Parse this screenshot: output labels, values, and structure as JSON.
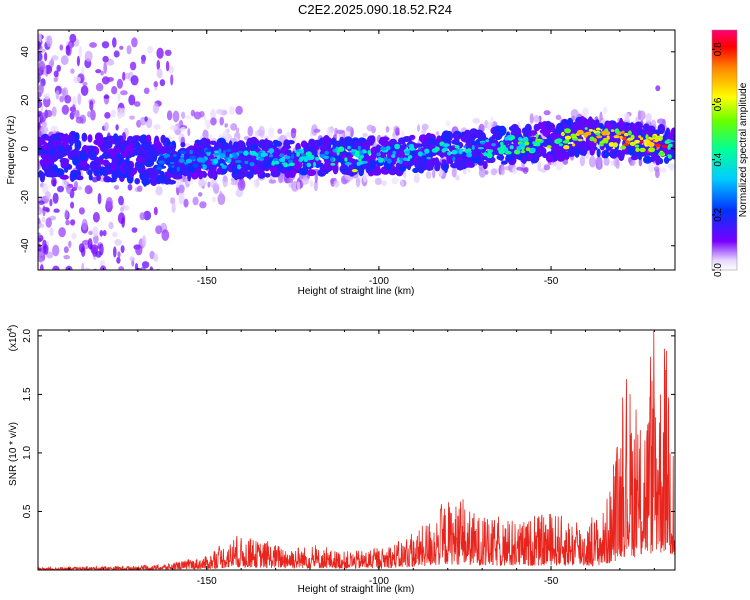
{
  "title": "C2E2.2025.090.18.52.R24",
  "colors": {
    "background": "#ffffff",
    "snr_line": "#e8241c",
    "spec_low": "#6600ff",
    "spec_mid": "#00e5ff",
    "spec_high": "#ff0000"
  },
  "colorbar": {
    "label": "Normalized spectral amplitude",
    "ticks": [
      "0.0",
      "0.2",
      "0.4",
      "0.6",
      "0.8"
    ],
    "range": [
      0,
      0.87
    ],
    "colormap": "rainbow-on-white"
  },
  "chart_data": [
    {
      "type": "heatmap",
      "title": "",
      "xlabel": "Height of straight line (km)",
      "ylabel": "Frequency (Hz)",
      "xlim": [
        -199,
        -14
      ],
      "ylim": [
        -50,
        49
      ],
      "xticks": [
        "-150",
        "-100",
        "-50"
      ],
      "yticks": [
        "40",
        "20",
        "0",
        "-20",
        "-40"
      ],
      "ridge": {
        "x": [
          -195,
          -180,
          -160,
          -150,
          -130,
          -110,
          -100,
          -90,
          -70,
          -60,
          -50,
          -40,
          -30,
          -20,
          -15
        ],
        "freq": [
          -3,
          -4,
          -5,
          -4,
          -4,
          -3,
          -3,
          -2,
          0,
          2,
          3,
          5,
          4,
          2,
          0
        ],
        "amplitude": [
          0.15,
          0.2,
          0.3,
          0.35,
          0.4,
          0.45,
          0.45,
          0.4,
          0.45,
          0.5,
          0.6,
          0.7,
          0.75,
          0.85,
          0.5
        ]
      }
    },
    {
      "type": "line",
      "title": "",
      "xlabel": "Height of straight line (km)",
      "ylabel": "SNR (10 * v/v)",
      "yunit": "(x10",
      "yunit_exp": "4",
      "yunit_close": ")",
      "xlim": [
        -199,
        -14
      ],
      "ylim": [
        0,
        2.05
      ],
      "xticks": [
        "-150",
        "-100",
        "-50"
      ],
      "yticks": [
        "2.0",
        "1.5",
        "1.0",
        "0.5"
      ],
      "series": [
        {
          "x": [
            -199,
            -180,
            -165,
            -160,
            -150,
            -145,
            -140,
            -135,
            -130,
            -120,
            -110,
            -100,
            -90,
            -85,
            -80,
            -75,
            -70,
            -60,
            -55,
            -50,
            -40,
            -35,
            -32,
            -30,
            -27,
            -25,
            -22,
            -20,
            -18,
            -16,
            -14
          ],
          "envelope": [
            0.02,
            0.03,
            0.04,
            0.06,
            0.12,
            0.22,
            0.28,
            0.25,
            0.22,
            0.2,
            0.16,
            0.18,
            0.3,
            0.45,
            0.6,
            0.55,
            0.45,
            0.4,
            0.45,
            0.5,
            0.4,
            0.5,
            0.8,
            1.3,
            1.6,
            1.2,
            1.5,
            1.9,
            1.7,
            2.0,
            0.6
          ]
        }
      ]
    }
  ]
}
